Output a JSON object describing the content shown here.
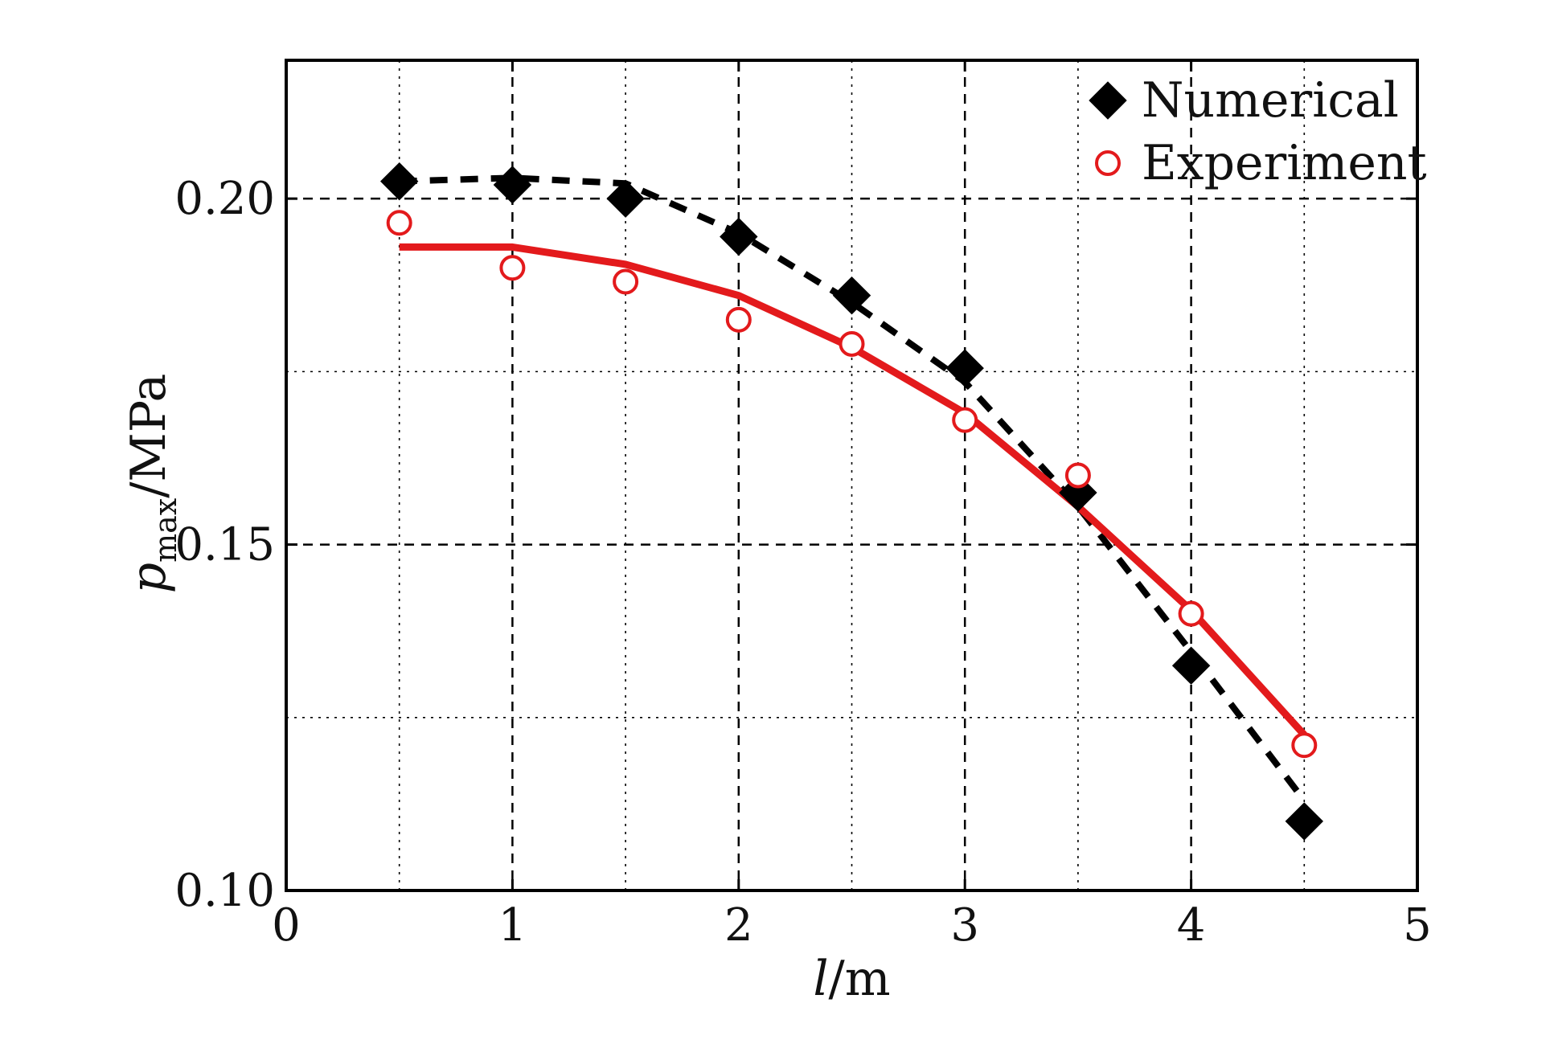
{
  "chart_data": {
    "type": "scatter",
    "xlabel_italic": "l",
    "xlabel_unit": "/m",
    "ylabel_italic": "p",
    "ylabel_sub": "max",
    "ylabel_unit": "/MPa",
    "xlim": [
      0,
      5
    ],
    "ylim": [
      0.1,
      0.22
    ],
    "x_ticks": [
      0,
      1,
      2,
      3,
      4,
      5
    ],
    "x_tick_labels": [
      "0",
      "1",
      "2",
      "3",
      "4",
      "5"
    ],
    "y_ticks": [
      0.1,
      0.15,
      0.2
    ],
    "y_tick_labels": [
      "0.10",
      "0.15",
      "0.20"
    ],
    "grid": true,
    "legend_position": "top-right",
    "series": [
      {
        "name": "Numerical",
        "marker": "diamond-filled",
        "color": "#000000",
        "x": [
          0.5,
          1.0,
          1.5,
          2.0,
          2.5,
          3.0,
          3.5,
          4.0,
          4.5
        ],
        "y": [
          0.2025,
          0.202,
          0.2,
          0.1945,
          0.186,
          0.1755,
          0.1575,
          0.1325,
          0.11
        ],
        "fit": {
          "style": "dashed",
          "x": [
            0.5,
            1.0,
            1.5,
            2.0,
            2.5,
            3.0,
            3.5,
            4.0,
            4.5
          ],
          "y": [
            0.2025,
            0.203,
            0.2022,
            0.195,
            0.185,
            0.1735,
            0.1555,
            0.1345,
            0.113
          ]
        }
      },
      {
        "name": "Experiment",
        "marker": "circle-open",
        "color": "#e31a1c",
        "x": [
          0.5,
          1.0,
          1.5,
          2.0,
          2.5,
          3.0,
          3.5,
          4.0,
          4.5
        ],
        "y": [
          0.1965,
          0.19,
          0.188,
          0.1825,
          0.179,
          0.168,
          0.16,
          0.14,
          0.121
        ],
        "fit": {
          "style": "solid",
          "x": [
            0.5,
            1.0,
            1.5,
            2.0,
            2.5,
            3.0,
            3.5,
            4.0,
            4.5
          ],
          "y": [
            0.193,
            0.193,
            0.1905,
            0.186,
            0.1785,
            0.169,
            0.1555,
            0.1405,
            0.1225
          ]
        }
      }
    ]
  }
}
